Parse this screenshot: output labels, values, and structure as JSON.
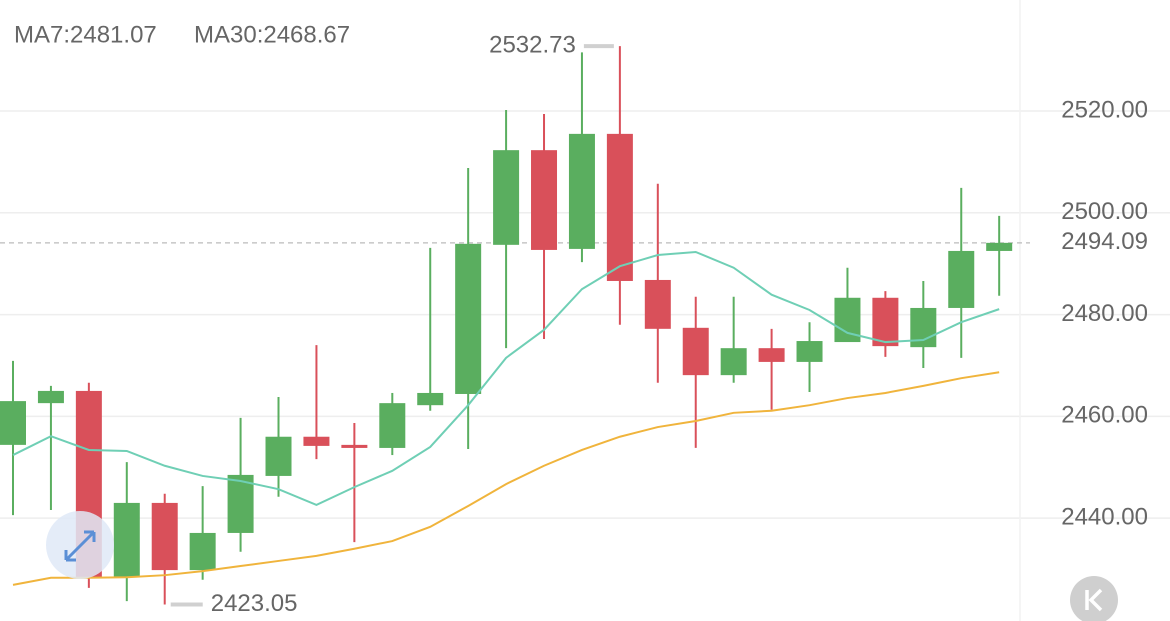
{
  "chart_data": {
    "type": "candlestick",
    "open": [
      2454.4,
      2462.6,
      2465.0,
      2428.4,
      2443.0,
      2429.8,
      2437.1,
      2448.3,
      2456.0,
      2454.4,
      2453.8,
      2462.2,
      2464.4,
      2493.7,
      2512.3,
      2492.9,
      2515.5,
      2486.8,
      2477.4,
      2468.1,
      2473.4,
      2470.7,
      2474.6,
      2483.3,
      2473.6,
      2481.3,
      2492.5
    ],
    "high": [
      2470.9,
      2466.0,
      2466.6,
      2451.0,
      2444.8,
      2446.3,
      2459.7,
      2463.8,
      2474.0,
      2458.7,
      2464.6,
      2493.1,
      2508.8,
      2520.2,
      2519.4,
      2531.5,
      2532.73,
      2505.7,
      2483.5,
      2483.5,
      2477.2,
      2478.5,
      2489.2,
      2484.6,
      2486.6,
      2504.9,
      2499.4
    ],
    "low": [
      2440.6,
      2441.6,
      2426.3,
      2423.7,
      2423.05,
      2427.9,
      2433.4,
      2444.2,
      2451.6,
      2435.3,
      2452.4,
      2461.1,
      2453.6,
      2473.4,
      2475.2,
      2490.3,
      2478.0,
      2466.6,
      2453.8,
      2466.6,
      2461.3,
      2464.8,
      2474.6,
      2471.7,
      2469.5,
      2471.5,
      2483.7
    ],
    "close": [
      2463.0,
      2465.0,
      2428.4,
      2443.0,
      2429.8,
      2437.1,
      2448.5,
      2456.0,
      2454.2,
      2453.8,
      2462.6,
      2464.6,
      2493.9,
      2512.3,
      2492.7,
      2515.5,
      2486.6,
      2477.2,
      2468.1,
      2473.4,
      2470.7,
      2474.8,
      2483.3,
      2473.8,
      2481.3,
      2492.5,
      2494.09
    ],
    "up_color": "#5aae5f",
    "down_color": "#d9505a",
    "series": [
      {
        "name": "MA7",
        "legend_label": "MA7:2481.07",
        "color": "#6fcfb5",
        "values": [
          2452.4,
          2456.1,
          2453.4,
          2453.2,
          2450.3,
          2448.3,
          2447.3,
          2445.7,
          2442.6,
          2446.1,
          2449.3,
          2454.0,
          2462.2,
          2471.5,
          2477.0,
          2485.0,
          2489.5,
          2491.7,
          2492.3,
          2489.2,
          2483.9,
          2480.9,
          2476.4,
          2474.6,
          2475.0,
          2478.5,
          2481.07
        ]
      },
      {
        "name": "MA30",
        "legend_label": "MA30:2468.67",
        "color": "#f0b43c",
        "values": [
          2426.9,
          2428.3,
          2428.3,
          2428.4,
          2428.8,
          2429.6,
          2430.6,
          2431.6,
          2432.6,
          2434.0,
          2435.5,
          2438.3,
          2442.4,
          2446.7,
          2450.3,
          2453.4,
          2456.0,
          2457.9,
          2459.1,
          2460.7,
          2461.1,
          2462.2,
          2463.6,
          2464.6,
          2466.0,
          2467.5,
          2468.67
        ]
      }
    ],
    "ylim": [
      2419.8,
      2541.8
    ],
    "yticks": [
      {
        "value": 2440,
        "label": "2440.00"
      },
      {
        "value": 2460,
        "label": "2460.00"
      },
      {
        "value": 2480,
        "label": "2480.00"
      },
      {
        "value": 2500,
        "label": "2500.00"
      },
      {
        "value": 2520,
        "label": "2520.00"
      }
    ],
    "grid": true
  }
}
